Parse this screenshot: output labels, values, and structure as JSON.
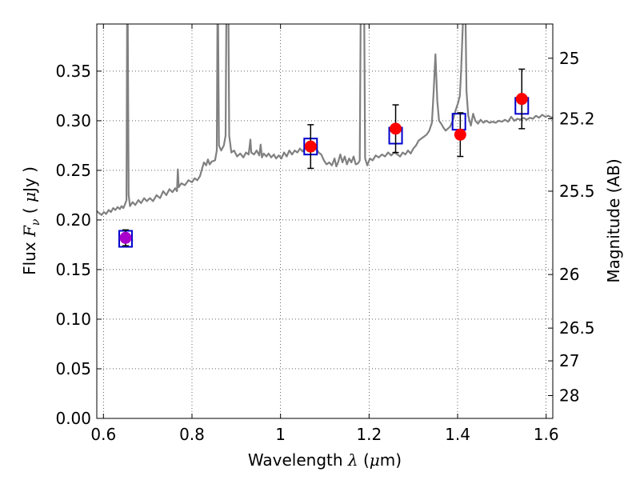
{
  "chart_data": {
    "type": "line",
    "xlabel": {
      "prefix": "Wavelength",
      "symbol": "λ",
      "unit_open": " (",
      "unit_mu": "μ",
      "unit_rest": "m)"
    },
    "ylabel": {
      "prefix": "Flux",
      "symbol": "F",
      "subscript": "ν",
      "unit_open": " ( ",
      "unit_mu": "μ",
      "unit_rest": "Jy )"
    },
    "y2label": "Magnitude (AB)",
    "xlim": [
      0.585,
      1.615
    ],
    "ylim": [
      0.0,
      0.3975
    ],
    "grid": true,
    "x_ticks": [
      {
        "value": 0.6,
        "label": "0.6"
      },
      {
        "value": 0.8,
        "label": "0.8"
      },
      {
        "value": 1.0,
        "label": "1"
      },
      {
        "value": 1.2,
        "label": "1.2"
      },
      {
        "value": 1.4,
        "label": "1.4"
      },
      {
        "value": 1.6,
        "label": "1.6"
      }
    ],
    "y_ticks": [
      {
        "value": 0.0,
        "label": "0.00"
      },
      {
        "value": 0.05,
        "label": "0.05"
      },
      {
        "value": 0.1,
        "label": "0.10"
      },
      {
        "value": 0.15,
        "label": "0.15"
      },
      {
        "value": 0.2,
        "label": "0.20"
      },
      {
        "value": 0.25,
        "label": "0.25"
      },
      {
        "value": 0.3,
        "label": "0.30"
      },
      {
        "value": 0.35,
        "label": "0.35"
      }
    ],
    "y2_ticks": [
      {
        "label": "25",
        "flux": 0.363
      },
      {
        "label": "25.2",
        "flux": 0.302
      },
      {
        "label": "25.5",
        "flux": 0.229
      },
      {
        "label": "26",
        "flux": 0.145
      },
      {
        "label": "26.5",
        "flux": 0.091
      },
      {
        "label": "27",
        "flux": 0.058
      },
      {
        "label": "28",
        "flux": 0.023
      }
    ],
    "spectrum": {
      "color": "#808080",
      "points": [
        [
          0.585,
          0.209
        ],
        [
          0.59,
          0.207
        ],
        [
          0.596,
          0.205
        ],
        [
          0.601,
          0.208
        ],
        [
          0.606,
          0.206
        ],
        [
          0.612,
          0.21
        ],
        [
          0.617,
          0.208
        ],
        [
          0.622,
          0.212
        ],
        [
          0.627,
          0.21
        ],
        [
          0.632,
          0.213
        ],
        [
          0.637,
          0.211
        ],
        [
          0.641,
          0.214
        ],
        [
          0.645,
          0.212
        ],
        [
          0.648,
          0.215
        ],
        [
          0.652,
          0.22
        ],
        [
          0.6535,
          0.4
        ],
        [
          0.655,
          0.4
        ],
        [
          0.657,
          0.225
        ],
        [
          0.66,
          0.214
        ],
        [
          0.666,
          0.218
        ],
        [
          0.672,
          0.215
        ],
        [
          0.679,
          0.22
        ],
        [
          0.685,
          0.217
        ],
        [
          0.692,
          0.222
        ],
        [
          0.698,
          0.219
        ],
        [
          0.705,
          0.222
        ],
        [
          0.712,
          0.219
        ],
        [
          0.72,
          0.225
        ],
        [
          0.728,
          0.222
        ],
        [
          0.735,
          0.229
        ],
        [
          0.742,
          0.225
        ],
        [
          0.749,
          0.231
        ],
        [
          0.756,
          0.228
        ],
        [
          0.762,
          0.232
        ],
        [
          0.766,
          0.229
        ],
        [
          0.768,
          0.251
        ],
        [
          0.77,
          0.233
        ],
        [
          0.776,
          0.237
        ],
        [
          0.784,
          0.235
        ],
        [
          0.792,
          0.24
        ],
        [
          0.8,
          0.238
        ],
        [
          0.806,
          0.242
        ],
        [
          0.812,
          0.24
        ],
        [
          0.818,
          0.244
        ],
        [
          0.823,
          0.252
        ],
        [
          0.827,
          0.258
        ],
        [
          0.832,
          0.255
        ],
        [
          0.836,
          0.261
        ],
        [
          0.84,
          0.256
        ],
        [
          0.845,
          0.259
        ],
        [
          0.852,
          0.26
        ],
        [
          0.856,
          0.27
        ],
        [
          0.8575,
          0.4
        ],
        [
          0.859,
          0.4
        ],
        [
          0.861,
          0.275
        ],
        [
          0.866,
          0.27
        ],
        [
          0.872,
          0.275
        ],
        [
          0.876,
          0.285
        ],
        [
          0.8775,
          0.4
        ],
        [
          0.879,
          0.4
        ],
        [
          0.881,
          0.4
        ],
        [
          0.8825,
          0.4
        ],
        [
          0.884,
          0.285
        ],
        [
          0.889,
          0.268
        ],
        [
          0.895,
          0.27
        ],
        [
          0.902,
          0.264
        ],
        [
          0.909,
          0.267
        ],
        [
          0.916,
          0.263
        ],
        [
          0.922,
          0.268
        ],
        [
          0.928,
          0.266
        ],
        [
          0.932,
          0.281
        ],
        [
          0.934,
          0.268
        ],
        [
          0.94,
          0.266
        ],
        [
          0.946,
          0.27
        ],
        [
          0.952,
          0.265
        ],
        [
          0.955,
          0.276
        ],
        [
          0.958,
          0.263
        ],
        [
          0.962,
          0.267
        ],
        [
          0.968,
          0.264
        ],
        [
          0.973,
          0.267
        ],
        [
          0.979,
          0.263
        ],
        [
          0.985,
          0.266
        ],
        [
          0.99,
          0.262
        ],
        [
          0.996,
          0.265
        ],
        [
          1.002,
          0.262
        ],
        [
          1.008,
          0.268
        ],
        [
          1.014,
          0.264
        ],
        [
          1.02,
          0.27
        ],
        [
          1.026,
          0.266
        ],
        [
          1.032,
          0.27
        ],
        [
          1.038,
          0.268
        ],
        [
          1.044,
          0.272
        ],
        [
          1.05,
          0.269
        ],
        [
          1.056,
          0.273
        ],
        [
          1.062,
          0.27
        ],
        [
          1.068,
          0.273
        ],
        [
          1.074,
          0.27
        ],
        [
          1.08,
          0.272
        ],
        [
          1.086,
          0.268
        ],
        [
          1.092,
          0.266
        ],
        [
          1.098,
          0.26
        ],
        [
          1.104,
          0.256
        ],
        [
          1.11,
          0.258
        ],
        [
          1.116,
          0.255
        ],
        [
          1.122,
          0.262
        ],
        [
          1.126,
          0.254
        ],
        [
          1.13,
          0.258
        ],
        [
          1.135,
          0.266
        ],
        [
          1.14,
          0.258
        ],
        [
          1.145,
          0.264
        ],
        [
          1.15,
          0.256
        ],
        [
          1.155,
          0.262
        ],
        [
          1.16,
          0.258
        ],
        [
          1.165,
          0.264
        ],
        [
          1.17,
          0.256
        ],
        [
          1.175,
          0.257
        ],
        [
          1.179,
          0.26
        ],
        [
          1.181,
          0.4
        ],
        [
          1.189,
          0.4
        ],
        [
          1.191,
          0.262
        ],
        [
          1.196,
          0.255
        ],
        [
          1.202,
          0.262
        ],
        [
          1.208,
          0.26
        ],
        [
          1.215,
          0.265
        ],
        [
          1.222,
          0.263
        ],
        [
          1.229,
          0.266
        ],
        [
          1.236,
          0.264
        ],
        [
          1.243,
          0.268
        ],
        [
          1.25,
          0.265
        ],
        [
          1.257,
          0.268
        ],
        [
          1.264,
          0.266
        ],
        [
          1.27,
          0.264
        ],
        [
          1.276,
          0.268
        ],
        [
          1.282,
          0.266
        ],
        [
          1.288,
          0.27
        ],
        [
          1.294,
          0.267
        ],
        [
          1.3,
          0.272
        ],
        [
          1.306,
          0.275
        ],
        [
          1.312,
          0.28
        ],
        [
          1.318,
          0.282
        ],
        [
          1.324,
          0.284
        ],
        [
          1.33,
          0.286
        ],
        [
          1.336,
          0.29
        ],
        [
          1.342,
          0.298
        ],
        [
          1.346,
          0.33
        ],
        [
          1.35,
          0.367
        ],
        [
          1.354,
          0.32
        ],
        [
          1.358,
          0.3
        ],
        [
          1.363,
          0.297
        ],
        [
          1.368,
          0.293
        ],
        [
          1.373,
          0.29
        ],
        [
          1.378,
          0.292
        ],
        [
          1.383,
          0.294
        ],
        [
          1.389,
          0.3
        ],
        [
          1.395,
          0.31
        ],
        [
          1.401,
          0.318
        ],
        [
          1.405,
          0.325
        ],
        [
          1.408,
          0.35
        ],
        [
          1.412,
          0.4
        ],
        [
          1.418,
          0.4
        ],
        [
          1.42,
          0.33
        ],
        [
          1.424,
          0.305
        ],
        [
          1.43,
          0.295
        ],
        [
          1.435,
          0.307
        ],
        [
          1.44,
          0.3
        ],
        [
          1.446,
          0.297
        ],
        [
          1.452,
          0.301
        ],
        [
          1.458,
          0.298
        ],
        [
          1.465,
          0.3
        ],
        [
          1.472,
          0.298
        ],
        [
          1.479,
          0.299
        ],
        [
          1.486,
          0.298
        ],
        [
          1.493,
          0.3
        ],
        [
          1.5,
          0.299
        ],
        [
          1.507,
          0.301
        ],
        [
          1.514,
          0.299
        ],
        [
          1.521,
          0.304
        ],
        [
          1.528,
          0.3
        ],
        [
          1.535,
          0.302
        ],
        [
          1.542,
          0.301
        ],
        [
          1.549,
          0.303
        ],
        [
          1.556,
          0.301
        ],
        [
          1.563,
          0.303
        ],
        [
          1.57,
          0.302
        ],
        [
          1.577,
          0.305
        ],
        [
          1.584,
          0.303
        ],
        [
          1.591,
          0.306
        ],
        [
          1.598,
          0.304
        ],
        [
          1.605,
          0.305
        ],
        [
          1.612,
          0.303
        ],
        [
          1.615,
          0.304
        ]
      ]
    },
    "model_boxes": {
      "color": "#0000cc",
      "points": [
        {
          "x": 0.65,
          "y": 0.181
        },
        {
          "x": 1.068,
          "y": 0.274
        },
        {
          "x": 1.26,
          "y": 0.285
        },
        {
          "x": 1.403,
          "y": 0.299
        },
        {
          "x": 1.545,
          "y": 0.315
        }
      ]
    },
    "observed": {
      "color": "#ff0000",
      "points": [
        {
          "x": 1.068,
          "y": 0.274,
          "err": 0.022
        },
        {
          "x": 1.26,
          "y": 0.292,
          "err": 0.024
        },
        {
          "x": 1.406,
          "y": 0.286,
          "err": 0.022
        },
        {
          "x": 1.545,
          "y": 0.322,
          "err": 0.03
        }
      ]
    },
    "special_point": {
      "x": 0.65,
      "y": 0.182,
      "err": 0.008,
      "color": "#aa00cc"
    }
  }
}
